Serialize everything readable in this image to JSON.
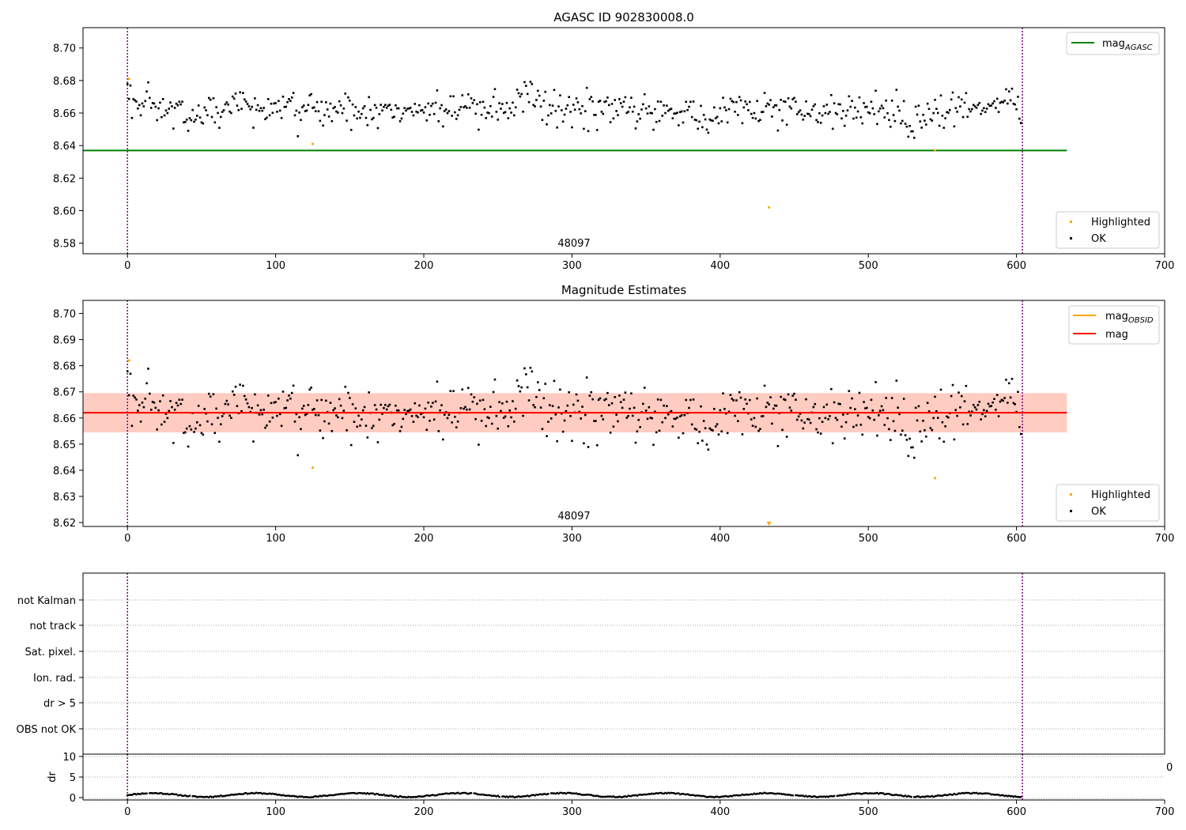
{
  "colors": {
    "ok": "#000000",
    "highlighted": "#ffa500",
    "agasc_line": "#008000",
    "obsid_line": "#ffa500",
    "mag_line": "#ff0000",
    "band_outer": "#ffc0cb",
    "band_inner": "#ffa07a",
    "interval_marker": "#800080"
  },
  "chart_data": [
    {
      "type": "scatter",
      "title": "AGASC ID 902830008.0",
      "xlabel": "",
      "ylabel": "",
      "xlim": [
        -30,
        700
      ],
      "ylim": [
        8.5735,
        8.7125
      ],
      "xticks": [
        "0",
        "100",
        "200",
        "300",
        "400",
        "500",
        "600",
        "700"
      ],
      "yticks": [
        "8.58",
        "8.60",
        "8.62",
        "8.64",
        "8.66",
        "8.68",
        "8.70"
      ],
      "annotation": "48097",
      "legend_lines": {
        "position": "top-right",
        "entries": [
          {
            "label": "mag",
            "sub": "AGASC"
          }
        ]
      },
      "legend_points": {
        "position": "bottom-right",
        "entries": [
          "Highlighted",
          "OK"
        ]
      },
      "reference_lines": [
        {
          "name": "mag_AGASC",
          "y": 8.637,
          "x": [
            -30,
            634
          ]
        }
      ],
      "interval_markers": [
        0,
        604
      ],
      "highlighted_points": {
        "x": [
          1,
          125,
          433,
          545
        ],
        "y": [
          8.681,
          8.641,
          8.602,
          8.637
        ]
      },
      "ok_series": {
        "n": 604,
        "mean": 8.662,
        "seed": 97
      }
    },
    {
      "type": "scatter",
      "title": "Magnitude Estimates",
      "xlabel": "",
      "ylabel": "",
      "xlim": [
        -30,
        700
      ],
      "ylim": [
        8.6185,
        8.705
      ],
      "xticks": [
        "0",
        "100",
        "200",
        "300",
        "400",
        "500",
        "600",
        "700"
      ],
      "yticks": [
        "8.62",
        "8.63",
        "8.64",
        "8.65",
        "8.66",
        "8.67",
        "8.68",
        "8.69",
        "8.70"
      ],
      "annotation": "48097",
      "legend_lines": {
        "position": "top-right",
        "entries": [
          {
            "label": "mag",
            "sub": "OBSID"
          },
          {
            "label": "mag",
            "sub": ""
          }
        ]
      },
      "legend_points": {
        "position": "bottom-right",
        "entries": [
          "Highlighted",
          "OK"
        ]
      },
      "reference_lines": [
        {
          "name": "mag_OBSID",
          "y": 8.662,
          "x": [
            -30,
            634
          ]
        },
        {
          "name": "mag",
          "y": 8.662,
          "x": [
            -30,
            634
          ]
        }
      ],
      "band_outer": [
        8.6545,
        8.6695
      ],
      "band_inner": [
        8.6545,
        8.6695
      ],
      "interval_markers": [
        0,
        604
      ],
      "highlighted_points": {
        "x": [
          1,
          125,
          545
        ],
        "y": [
          8.682,
          8.641,
          8.637
        ]
      },
      "offscale_markers": {
        "x": [
          433
        ],
        "direction": "down"
      },
      "ok_series": {
        "n": 604,
        "mean": 8.662,
        "seed": 97
      }
    },
    {
      "type": "scatter",
      "title": "",
      "xlabel": "",
      "ylabel": "",
      "xlim": [
        -30,
        700
      ],
      "flag_labels": [
        "not Kalman",
        "not track",
        "Sat. pixel.",
        "Ion. rad.",
        "dr > 5",
        "OBS not OK"
      ],
      "interval_markers": [
        0,
        604
      ]
    },
    {
      "type": "line",
      "title": "",
      "xlabel": "",
      "ylabel": "dr",
      "xlim": [
        -30,
        700
      ],
      "ylim": [
        -0.3,
        10.3
      ],
      "xticks": [
        "0",
        "100",
        "200",
        "300",
        "400",
        "500",
        "600",
        "700"
      ],
      "yticks": [
        "0",
        "5",
        "10"
      ],
      "stray_tick_label": "0",
      "interval_markers": [
        0,
        604
      ],
      "dr_series": {
        "n": 604,
        "range": [
          0.0,
          1.3
        ]
      }
    }
  ]
}
